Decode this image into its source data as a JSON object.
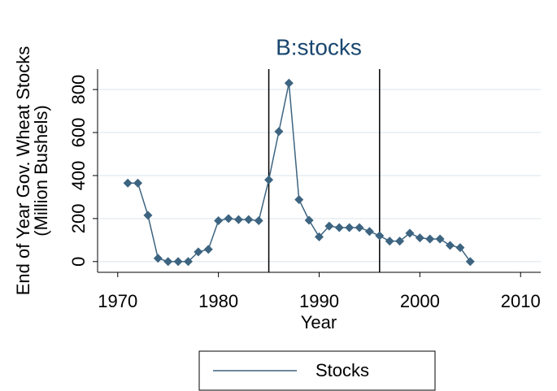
{
  "chart_data": {
    "type": "line",
    "title": "B:stocks",
    "x_label": "Year",
    "y_label": [
      "End of Year Gov. Wheat Stocks",
      "(Million Bushels)"
    ],
    "x": [
      1971,
      1972,
      1973,
      1974,
      1975,
      1976,
      1977,
      1978,
      1979,
      1980,
      1981,
      1982,
      1983,
      1984,
      1985,
      1986,
      1987,
      1988,
      1989,
      1990,
      1991,
      1992,
      1993,
      1994,
      1995,
      1996,
      1997,
      1998,
      1999,
      2000,
      2001,
      2002,
      2003,
      2004,
      2005
    ],
    "series": [
      {
        "name": "Stocks",
        "color": "#3d6480",
        "values": [
          365,
          365,
          215,
          15,
          0,
          0,
          0,
          45,
          57,
          190,
          200,
          195,
          195,
          190,
          380,
          605,
          830,
          288,
          192,
          115,
          165,
          158,
          158,
          158,
          140,
          120,
          95,
          95,
          132,
          110,
          105,
          105,
          75,
          65,
          0
        ]
      }
    ],
    "xlim": [
      1968,
      2012
    ],
    "xticks": [
      1970,
      1980,
      1990,
      2000,
      2010
    ],
    "ylim": [
      -50,
      895
    ],
    "yticks": [
      0,
      200,
      400,
      600,
      800
    ],
    "vlines": [
      1985,
      1996
    ],
    "grid": true
  }
}
